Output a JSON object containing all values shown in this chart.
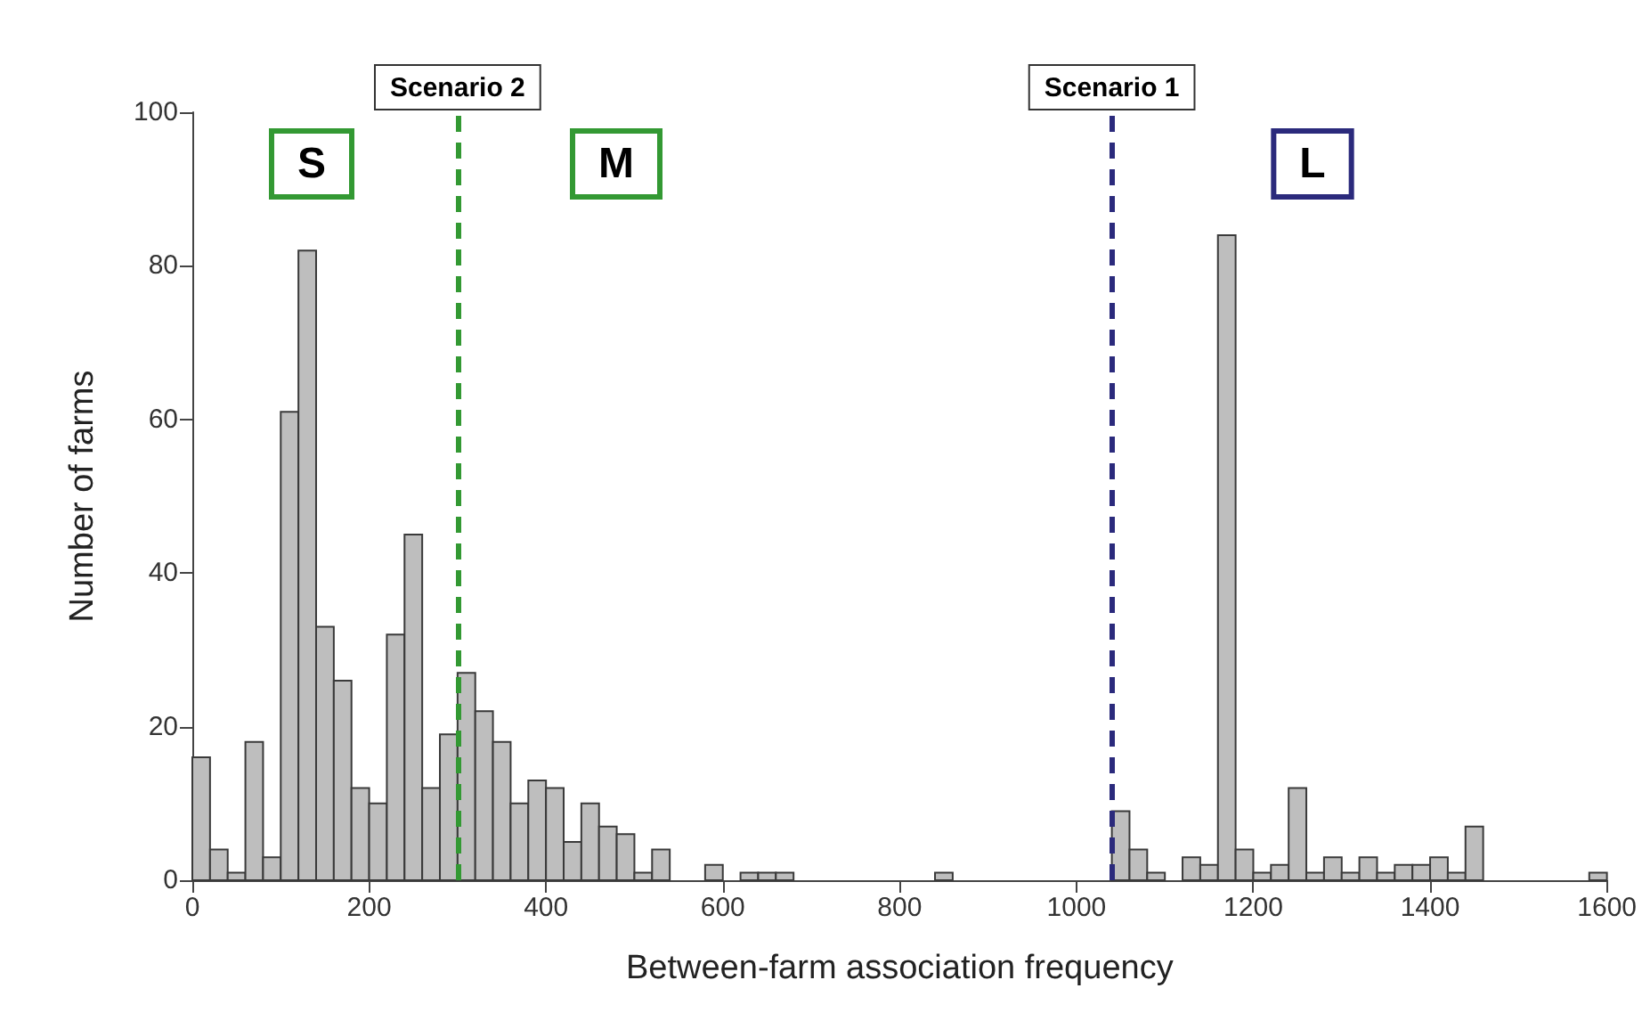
{
  "chart_data": {
    "type": "histogram",
    "xlabel": "Between-farm association frequency",
    "ylabel": "Number of farms",
    "bins": [
      0,
      20,
      40,
      60,
      80,
      100,
      120,
      140,
      160,
      180,
      200,
      220,
      240,
      260,
      280,
      300,
      320,
      340,
      360,
      380,
      400,
      420,
      440,
      460,
      480,
      500,
      520,
      540,
      560,
      580,
      600,
      620,
      640,
      660,
      680,
      700,
      720,
      740,
      760,
      780,
      800,
      820,
      840,
      860,
      880,
      900,
      920,
      940,
      960,
      980,
      1000,
      1020,
      1040,
      1060,
      1080,
      1100,
      1120,
      1140,
      1160,
      1180,
      1200,
      1220,
      1240,
      1260,
      1280,
      1300,
      1320,
      1340,
      1360,
      1380,
      1400,
      1420,
      1440,
      1460,
      1480,
      1500,
      1520,
      1540,
      1560,
      1580,
      1600
    ],
    "series": [
      {
        "color": "#bebebe",
        "values": [
          16,
          4,
          1,
          18,
          3,
          61,
          82,
          33,
          26,
          12,
          10,
          32,
          45,
          12,
          19,
          27,
          22,
          18,
          10,
          13,
          12,
          5,
          10,
          7,
          6,
          1,
          4,
          0,
          0,
          2,
          0,
          1,
          1,
          1,
          0,
          0,
          0,
          0,
          0,
          0,
          0,
          0,
          1,
          0,
          0,
          0,
          0,
          0,
          0,
          0,
          0,
          0,
          9,
          4,
          1,
          0,
          3,
          2,
          84,
          4,
          1,
          2,
          12,
          1,
          3,
          1,
          3,
          1,
          2,
          2,
          3,
          1,
          7,
          0,
          0,
          0,
          0,
          0,
          0,
          1
        ]
      }
    ],
    "xlim": [
      0,
      1600
    ],
    "xticks": [
      0,
      200,
      400,
      600,
      800,
      1000,
      1200,
      1400,
      1600
    ],
    "ylim": [
      0,
      100
    ],
    "yticks": [
      0,
      20,
      40,
      60,
      80,
      100
    ],
    "grid": false,
    "ref_lines": [
      {
        "axis": "x",
        "value": 300,
        "label": "Scenario 2",
        "color": "#339933",
        "line_style": "dashed"
      },
      {
        "axis": "x",
        "value": 1040,
        "label": "Scenario 1",
        "color": "#2b2a7c",
        "line_style": "dashed"
      }
    ],
    "annotations": [
      "S",
      "M",
      "L"
    ]
  }
}
